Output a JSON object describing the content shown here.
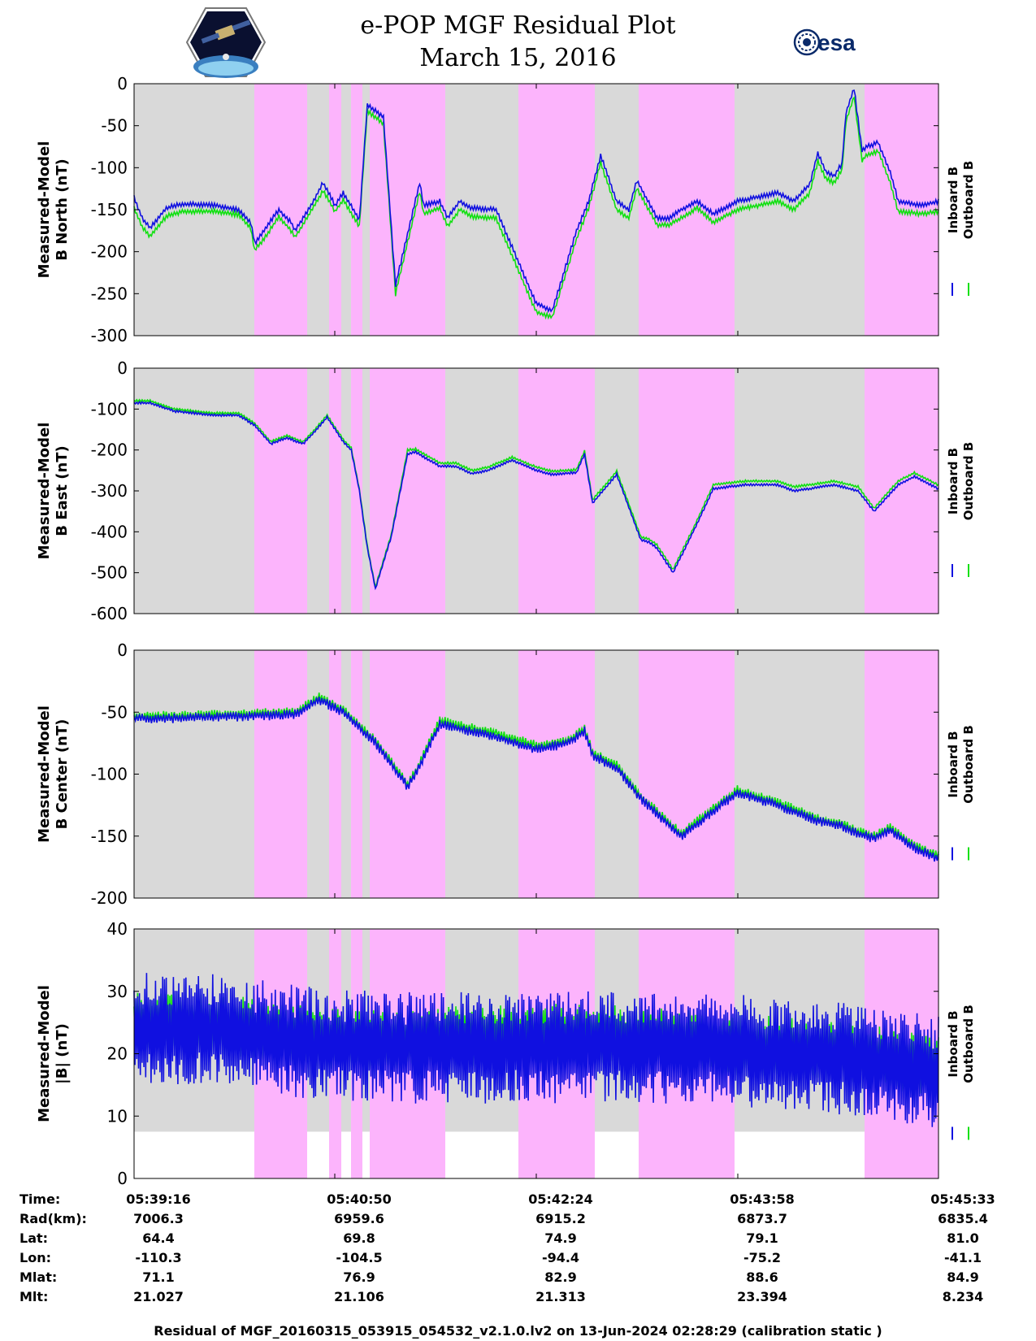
{
  "header": {
    "title_line1": "e-POP MGF Residual Plot",
    "title_line2": "March 15, 2016",
    "left_logo": "epop-satellite-logo",
    "right_logo": "esa-logo",
    "right_logo_text": "esa"
  },
  "colors": {
    "inboard": "#1010e0",
    "outboard": "#10e010",
    "background_shade": "#d9d9d9",
    "highlight_shade": "#fcb4fc"
  },
  "chart_data": [
    {
      "type": "line",
      "ylabel_line1": "Measured-Model",
      "ylabel_line2": "B North (nT)",
      "ylim": [
        -300,
        0
      ],
      "yticks": [
        0,
        -50,
        -100,
        -150,
        -200,
        -250,
        -300
      ],
      "ytick_labels": [
        "0",
        "-50",
        "-100",
        "-150",
        "-200",
        "-250",
        "-300"
      ],
      "legend": [
        "Inboard B",
        "Outboard B"
      ],
      "legend_placement": "right",
      "series": [
        {
          "name": "Inboard B",
          "color": "#1010e0",
          "x": [
            0,
            0.01,
            0.02,
            0.04,
            0.06,
            0.1,
            0.13,
            0.145,
            0.15,
            0.165,
            0.18,
            0.195,
            0.2,
            0.22,
            0.235,
            0.25,
            0.26,
            0.28,
            0.29,
            0.31,
            0.325,
            0.355,
            0.36,
            0.38,
            0.39,
            0.405,
            0.42,
            0.45,
            0.5,
            0.52,
            0.55,
            0.565,
            0.58,
            0.6,
            0.615,
            0.625,
            0.65,
            0.665,
            0.68,
            0.7,
            0.72,
            0.75,
            0.8,
            0.82,
            0.84,
            0.85,
            0.86,
            0.87,
            0.88,
            0.885,
            0.895,
            0.905,
            0.91,
            0.92,
            0.925,
            0.94,
            0.95,
            0.98,
            1.0
          ],
          "y": [
            -135,
            -160,
            -172,
            -148,
            -143,
            -145,
            -150,
            -165,
            -190,
            -170,
            -150,
            -165,
            -175,
            -145,
            -118,
            -145,
            -130,
            -162,
            -25,
            -40,
            -240,
            -118,
            -145,
            -140,
            -160,
            -140,
            -148,
            -150,
            -262,
            -270,
            -175,
            -140,
            -85,
            -140,
            -150,
            -115,
            -160,
            -160,
            -150,
            -140,
            -155,
            -140,
            -130,
            -140,
            -120,
            -82,
            -105,
            -110,
            -95,
            -35,
            -5,
            -80,
            -75,
            -72,
            -70,
            -105,
            -140,
            -145,
            -140
          ]
        },
        {
          "name": "Outboard B",
          "color": "#10e010",
          "x": [
            0,
            0.01,
            0.02,
            0.04,
            0.06,
            0.1,
            0.13,
            0.145,
            0.15,
            0.165,
            0.18,
            0.195,
            0.2,
            0.22,
            0.235,
            0.25,
            0.26,
            0.28,
            0.29,
            0.31,
            0.325,
            0.355,
            0.36,
            0.38,
            0.39,
            0.405,
            0.42,
            0.45,
            0.5,
            0.52,
            0.55,
            0.565,
            0.58,
            0.6,
            0.615,
            0.625,
            0.65,
            0.665,
            0.68,
            0.7,
            0.72,
            0.75,
            0.8,
            0.82,
            0.84,
            0.85,
            0.86,
            0.87,
            0.88,
            0.885,
            0.895,
            0.905,
            0.91,
            0.92,
            0.925,
            0.94,
            0.95,
            0.98,
            1.0
          ],
          "y": [
            -148,
            -170,
            -182,
            -158,
            -152,
            -152,
            -156,
            -172,
            -198,
            -180,
            -158,
            -175,
            -183,
            -152,
            -127,
            -152,
            -138,
            -170,
            -32,
            -48,
            -250,
            -128,
            -155,
            -148,
            -170,
            -150,
            -158,
            -160,
            -272,
            -278,
            -185,
            -148,
            -94,
            -150,
            -160,
            -124,
            -168,
            -168,
            -160,
            -148,
            -165,
            -150,
            -140,
            -150,
            -130,
            -92,
            -113,
            -118,
            -103,
            -45,
            -15,
            -92,
            -85,
            -82,
            -80,
            -118,
            -152,
            -155,
            -152
          ]
        }
      ]
    },
    {
      "type": "line",
      "ylabel_line1": "Measured-Model",
      "ylabel_line2": "B East (nT)",
      "ylim": [
        -600,
        0
      ],
      "yticks": [
        0,
        -100,
        -200,
        -300,
        -400,
        -500,
        -600
      ],
      "ytick_labels": [
        "0",
        "-100",
        "-200",
        "-300",
        "-400",
        "-500",
        "-600"
      ],
      "legend": [
        "Inboard B",
        "Outboard B"
      ],
      "legend_placement": "right",
      "series": [
        {
          "name": "Inboard B",
          "color": "#1010e0",
          "x": [
            0,
            0.02,
            0.05,
            0.1,
            0.13,
            0.15,
            0.17,
            0.19,
            0.21,
            0.22,
            0.24,
            0.26,
            0.27,
            0.28,
            0.29,
            0.3,
            0.32,
            0.34,
            0.35,
            0.38,
            0.4,
            0.42,
            0.44,
            0.47,
            0.5,
            0.52,
            0.55,
            0.56,
            0.57,
            0.6,
            0.63,
            0.64,
            0.65,
            0.67,
            0.7,
            0.72,
            0.76,
            0.8,
            0.82,
            0.84,
            0.87,
            0.9,
            0.92,
            0.95,
            0.97,
            1.0
          ],
          "y": [
            -85,
            -85,
            -105,
            -115,
            -115,
            -140,
            -185,
            -170,
            -185,
            -165,
            -120,
            -180,
            -200,
            -300,
            -440,
            -540,
            -410,
            -210,
            -205,
            -240,
            -240,
            -258,
            -250,
            -225,
            -250,
            -260,
            -255,
            -210,
            -330,
            -260,
            -420,
            -425,
            -440,
            -500,
            -380,
            -295,
            -285,
            -285,
            -300,
            -295,
            -285,
            -300,
            -350,
            -285,
            -265,
            -295
          ]
        },
        {
          "name": "Outboard B",
          "color": "#10e010",
          "x": [
            0,
            0.02,
            0.05,
            0.1,
            0.13,
            0.15,
            0.17,
            0.19,
            0.21,
            0.22,
            0.24,
            0.26,
            0.27,
            0.28,
            0.29,
            0.3,
            0.32,
            0.34,
            0.35,
            0.38,
            0.4,
            0.42,
            0.44,
            0.47,
            0.5,
            0.52,
            0.55,
            0.56,
            0.57,
            0.6,
            0.63,
            0.64,
            0.65,
            0.67,
            0.7,
            0.72,
            0.76,
            0.8,
            0.82,
            0.84,
            0.87,
            0.9,
            0.92,
            0.95,
            0.97,
            1.0
          ],
          "y": [
            -80,
            -80,
            -100,
            -110,
            -110,
            -135,
            -180,
            -165,
            -180,
            -160,
            -115,
            -175,
            -195,
            -295,
            -435,
            -535,
            -405,
            -200,
            -198,
            -232,
            -232,
            -250,
            -242,
            -218,
            -242,
            -252,
            -248,
            -202,
            -322,
            -252,
            -412,
            -418,
            -432,
            -492,
            -372,
            -285,
            -276,
            -276,
            -290,
            -285,
            -276,
            -290,
            -342,
            -276,
            -256,
            -286
          ]
        }
      ]
    },
    {
      "type": "line",
      "ylabel_line1": "Measured-Model",
      "ylabel_line2": "B Center (nT)",
      "ylim": [
        -200,
        0
      ],
      "yticks": [
        0,
        -50,
        -100,
        -150,
        -200
      ],
      "ytick_labels": [
        "0",
        "-50",
        "-100",
        "-150",
        "-200"
      ],
      "legend": [
        "Inboard B",
        "Outboard B"
      ],
      "legend_placement": "right",
      "series": [
        {
          "name": "Inboard B",
          "color": "#1010e0",
          "x": [
            0,
            0.05,
            0.1,
            0.15,
            0.2,
            0.23,
            0.26,
            0.3,
            0.34,
            0.35,
            0.38,
            0.45,
            0.5,
            0.54,
            0.56,
            0.57,
            0.6,
            0.63,
            0.68,
            0.7,
            0.75,
            0.8,
            0.85,
            0.88,
            0.9,
            0.92,
            0.94,
            0.97,
            1.0
          ],
          "y": [
            -55,
            -55,
            -54,
            -53,
            -52,
            -40,
            -50,
            -75,
            -110,
            -100,
            -60,
            -70,
            -80,
            -75,
            -65,
            -85,
            -95,
            -120,
            -150,
            -140,
            -115,
            -125,
            -138,
            -142,
            -148,
            -152,
            -145,
            -160,
            -168
          ]
        },
        {
          "name": "Outboard B",
          "color": "#10e010",
          "x": [
            0,
            0.05,
            0.1,
            0.15,
            0.2,
            0.23,
            0.26,
            0.3,
            0.34,
            0.35,
            0.38,
            0.45,
            0.5,
            0.54,
            0.56,
            0.57,
            0.6,
            0.63,
            0.68,
            0.7,
            0.75,
            0.8,
            0.85,
            0.88,
            0.9,
            0.92,
            0.94,
            0.97,
            1.0
          ],
          "y": [
            -53,
            -53,
            -52,
            -51,
            -50,
            -38,
            -48,
            -73,
            -108,
            -98,
            -57,
            -67,
            -77,
            -73,
            -63,
            -83,
            -93,
            -118,
            -148,
            -138,
            -113,
            -123,
            -136,
            -140,
            -146,
            -150,
            -143,
            -158,
            -166
          ]
        }
      ]
    },
    {
      "type": "line",
      "ylabel_line1": "Measured-Model",
      "ylabel_line2": "|B| (nT)",
      "ylim": [
        0,
        40
      ],
      "yticks": [
        40,
        30,
        20,
        10,
        0
      ],
      "ytick_labels": [
        "40",
        "30",
        "20",
        "10",
        "0"
      ],
      "legend": [
        "Inboard B",
        "Outboard B"
      ],
      "legend_placement": "right",
      "series": [
        {
          "name": "Inboard B",
          "color": "#1010e0",
          "x": [
            0,
            0.1,
            0.2,
            0.3,
            0.4,
            0.5,
            0.6,
            0.7,
            0.8,
            0.9,
            1.0
          ],
          "y": [
            24,
            24,
            22,
            21,
            21,
            21,
            21,
            21,
            20,
            19,
            17
          ]
        },
        {
          "name": "Outboard B",
          "color": "#10e010",
          "x": [
            0,
            0.1,
            0.2,
            0.3,
            0.4,
            0.5,
            0.6,
            0.7,
            0.8,
            0.9,
            1.0
          ],
          "y": [
            25,
            25,
            23,
            22,
            23,
            23,
            23,
            22,
            21,
            20,
            18
          ]
        }
      ]
    }
  ],
  "time_axis": {
    "labels": [
      "05:39:16",
      "05:40:50",
      "05:42:24",
      "05:43:58",
      "05:45:33"
    ]
  },
  "info_table": {
    "rows": [
      {
        "label": "Time:",
        "values": [
          "05:39:16",
          "05:40:50",
          "05:42:24",
          "05:43:58",
          "05:45:33"
        ]
      },
      {
        "label": "Rad(km):",
        "values": [
          "7006.3",
          "6959.6",
          "6915.2",
          "6873.7",
          "6835.4"
        ]
      },
      {
        "label": "Lat:",
        "values": [
          "64.4",
          "69.8",
          "74.9",
          "79.1",
          "81.0"
        ]
      },
      {
        "label": "Lon:",
        "values": [
          "-110.3",
          "-104.5",
          "-94.4",
          "-75.2",
          "-41.1"
        ]
      },
      {
        "label": "Mlat:",
        "values": [
          "71.1",
          "76.9",
          "82.9",
          "88.6",
          "84.9"
        ]
      },
      {
        "label": "Mlt:",
        "values": [
          "21.027",
          "21.106",
          "21.313",
          "23.394",
          "8.234"
        ]
      }
    ]
  },
  "footer": "Residual of MGF_20160315_053915_054532_v2.1.0.lv2 on 13-Jun-2024 02:28:29 (calibration static )"
}
